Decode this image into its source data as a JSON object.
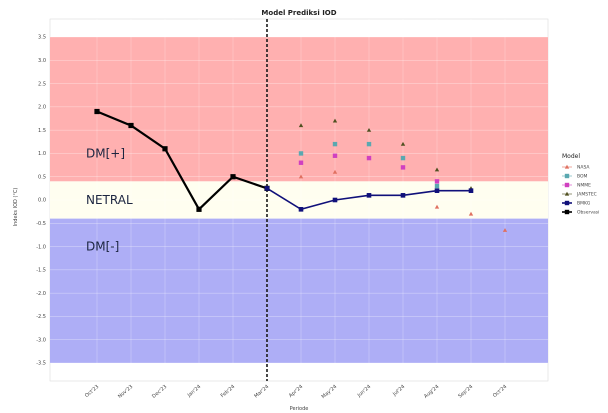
{
  "chart_data": {
    "type": "line",
    "title": "Model Prediksi IOD",
    "xlabel": "Periode",
    "ylabel": "Indeks IOD (°C)",
    "ylim": [
      -3.5,
      3.5
    ],
    "y_ticks": [
      3.5,
      3.0,
      2.5,
      2.0,
      1.5,
      1.0,
      0.5,
      0.0,
      -0.5,
      -1.0,
      -1.5,
      -2.0,
      -2.5,
      -3.0,
      -3.5
    ],
    "categories": [
      "Oct'23",
      "Nov'23",
      "Dec'23",
      "Jan'24",
      "Feb'24",
      "Mar'24",
      "Apr'24",
      "May'24",
      "Jun'24",
      "Jul'24",
      "Aug'24",
      "Sep'24",
      "Oct'24"
    ],
    "divider_category": "Mar'24",
    "zones": [
      {
        "label": "DM[+]",
        "from": 0.4,
        "to": 3.5,
        "color": "#ffb0b0"
      },
      {
        "label": "NETRAL",
        "from": -0.4,
        "to": 0.4,
        "color": "#fffef0"
      },
      {
        "label": "DM[-]",
        "from": -3.5,
        "to": -0.4,
        "color": "#aeaef6"
      }
    ],
    "observed": {
      "name": "Observasi",
      "color": "#000000",
      "x": [
        "Oct'23",
        "Nov'23",
        "Dec'23",
        "Jan'24",
        "Feb'24",
        "Mar'24"
      ],
      "y": [
        1.9,
        1.6,
        1.1,
        -0.2,
        0.5,
        0.25
      ]
    },
    "legend": {
      "title": "Model"
    },
    "series": [
      {
        "name": "NASA",
        "color": "#e07060",
        "marker": "triangle",
        "x": [
          "Apr'24",
          "May'24",
          "Aug'24",
          "Sep'24",
          "Oct'24"
        ],
        "y": [
          0.5,
          0.6,
          -0.15,
          -0.3,
          -0.65
        ]
      },
      {
        "name": "BOM",
        "color": "#5aa8b0",
        "marker": "square",
        "x": [
          "Apr'24",
          "May'24",
          "Jun'24",
          "Jul'24",
          "Aug'24"
        ],
        "y": [
          1.0,
          1.2,
          1.2,
          0.9,
          0.3
        ]
      },
      {
        "name": "NMME",
        "color": "#d040c0",
        "marker": "square",
        "x": [
          "Apr'24",
          "May'24",
          "Jun'24",
          "Jul'24",
          "Aug'24"
        ],
        "y": [
          0.8,
          0.95,
          0.9,
          0.7,
          0.4
        ]
      },
      {
        "name": "JAMSTEC",
        "color": "#505020",
        "marker": "triangle",
        "x": [
          "Apr'24",
          "May'24",
          "Jun'24",
          "Jul'24",
          "Aug'24",
          "Sep'24"
        ],
        "y": [
          1.6,
          1.7,
          1.5,
          1.2,
          0.65,
          0.25
        ]
      },
      {
        "name": "BMKG",
        "color": "#10107a",
        "marker": "square",
        "x": [
          "Mar'24",
          "Apr'24",
          "May'24",
          "Jun'24",
          "Jul'24",
          "Aug'24",
          "Sep'24"
        ],
        "y": [
          0.25,
          -0.2,
          0.0,
          0.1,
          0.1,
          0.2,
          0.2
        ]
      },
      {
        "name": "Observasi",
        "color": "#000000",
        "marker": "square",
        "x": [],
        "y": []
      }
    ]
  }
}
